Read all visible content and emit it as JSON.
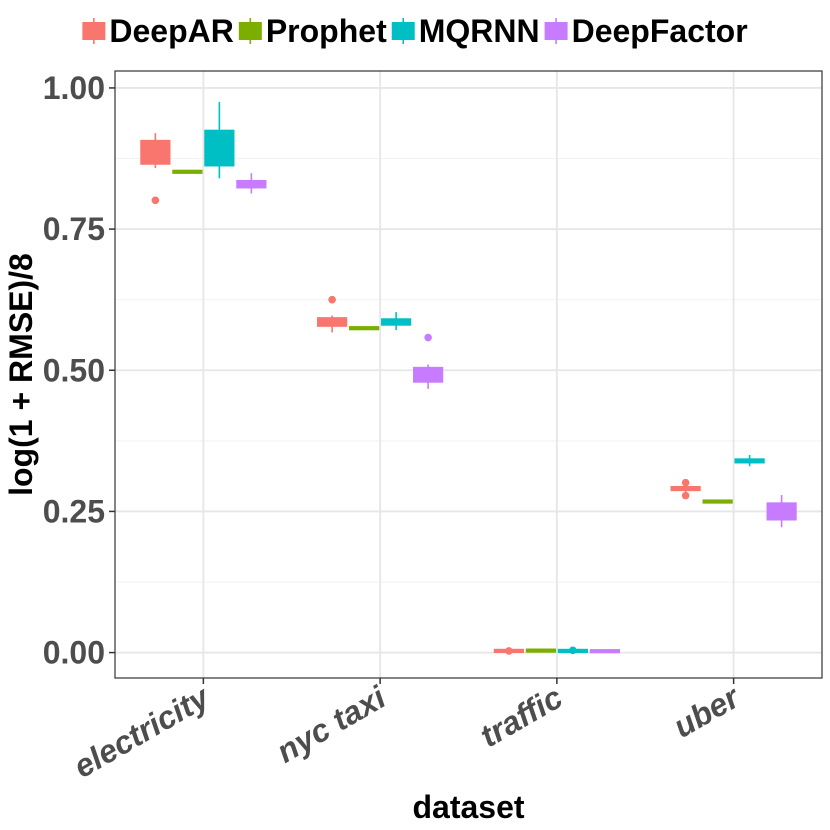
{
  "chart_data": {
    "type": "boxplot",
    "xlabel": "dataset",
    "ylabel": "log(1 + RMSE)/8",
    "ylim": [
      -0.045,
      1.03
    ],
    "y_ticks": [
      0.0,
      0.25,
      0.5,
      0.75,
      1.0
    ],
    "y_tick_labels": [
      "0.00",
      "0.25",
      "0.50",
      "0.75",
      "1.00"
    ],
    "categories": [
      "electricity",
      "nyc taxi",
      "traffic",
      "uber"
    ],
    "legend": {
      "position": "top"
    },
    "series": [
      {
        "name": "DeepAR",
        "color": "#F8766D",
        "boxes": [
          {
            "lower_whisker": 0.858,
            "q1": 0.865,
            "median": 0.893,
            "q3": 0.907,
            "upper_whisker": 0.92,
            "outliers": [
              0.801
            ]
          },
          {
            "lower_whisker": 0.567,
            "q1": 0.578,
            "median": 0.585,
            "q3": 0.593,
            "upper_whisker": 0.597,
            "outliers": [
              0.625
            ]
          },
          {
            "lower_whisker": 0.002,
            "q1": 0.002,
            "median": 0.003,
            "q3": 0.004,
            "upper_whisker": 0.005,
            "outliers": [
              0.003
            ]
          },
          {
            "lower_whisker": 0.284,
            "q1": 0.287,
            "median": 0.29,
            "q3": 0.294,
            "upper_whisker": 0.296,
            "outliers": [
              0.278,
              0.301
            ]
          }
        ]
      },
      {
        "name": "Prophet",
        "color": "#7CAE00",
        "boxes": [
          {
            "lower_whisker": 0.851,
            "q1": 0.851,
            "median": 0.851,
            "q3": 0.852,
            "upper_whisker": 0.852,
            "outliers": []
          },
          {
            "lower_whisker": 0.574,
            "q1": 0.574,
            "median": 0.574,
            "q3": 0.575,
            "upper_whisker": 0.575,
            "outliers": []
          },
          {
            "lower_whisker": 0.003,
            "q1": 0.003,
            "median": 0.003,
            "q3": 0.004,
            "upper_whisker": 0.004,
            "outliers": []
          },
          {
            "lower_whisker": 0.267,
            "q1": 0.267,
            "median": 0.267,
            "q3": 0.268,
            "upper_whisker": 0.268,
            "outliers": []
          }
        ]
      },
      {
        "name": "MQRNN",
        "color": "#00BFC4",
        "boxes": [
          {
            "lower_whisker": 0.84,
            "q1": 0.862,
            "median": 0.879,
            "q3": 0.925,
            "upper_whisker": 0.975,
            "outliers": []
          },
          {
            "lower_whisker": 0.571,
            "q1": 0.58,
            "median": 0.585,
            "q3": 0.591,
            "upper_whisker": 0.603,
            "outliers": []
          },
          {
            "lower_whisker": 0.002,
            "q1": 0.002,
            "median": 0.003,
            "q3": 0.004,
            "upper_whisker": 0.005,
            "outliers": [
              0.004
            ]
          },
          {
            "lower_whisker": 0.33,
            "q1": 0.336,
            "median": 0.34,
            "q3": 0.343,
            "upper_whisker": 0.35,
            "outliers": []
          }
        ]
      },
      {
        "name": "DeepFactor",
        "color": "#C77CFF",
        "boxes": [
          {
            "lower_whisker": 0.813,
            "q1": 0.823,
            "median": 0.829,
            "q3": 0.836,
            "upper_whisker": 0.849,
            "outliers": []
          },
          {
            "lower_whisker": 0.467,
            "q1": 0.479,
            "median": 0.49,
            "q3": 0.505,
            "upper_whisker": 0.51,
            "outliers": [
              0.558
            ]
          },
          {
            "lower_whisker": 0.002,
            "q1": 0.002,
            "median": 0.002,
            "q3": 0.003,
            "upper_whisker": 0.003,
            "outliers": []
          },
          {
            "lower_whisker": 0.222,
            "q1": 0.235,
            "median": 0.247,
            "q3": 0.265,
            "upper_whisker": 0.279,
            "outliers": []
          }
        ]
      }
    ]
  }
}
